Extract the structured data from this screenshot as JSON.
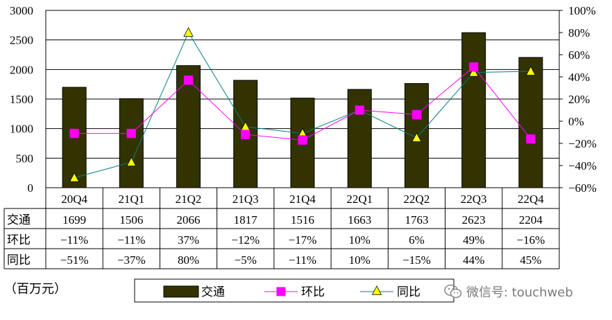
{
  "unit_label": "（百万元）",
  "watermark": "微信号: touchweb",
  "colors": {
    "bar": "#333300",
    "qoq_line": "#ff00ff",
    "yoy_line": "#008080",
    "yoy_marker": "#ffff00"
  },
  "chart_data": {
    "type": "bar",
    "title": "",
    "categories": [
      "20Q4",
      "21Q1",
      "21Q2",
      "21Q3",
      "21Q4",
      "22Q1",
      "22Q2",
      "22Q3",
      "22Q4"
    ],
    "series": [
      {
        "name": "交通",
        "type": "bar",
        "axis": "left",
        "values": [
          1699,
          1506,
          2066,
          1817,
          1516,
          1663,
          1763,
          2623,
          2204
        ]
      },
      {
        "name": "环比",
        "type": "line",
        "axis": "right",
        "marker": "square",
        "values": [
          -11,
          -11,
          37,
          -12,
          -17,
          10,
          6,
          49,
          -16
        ]
      },
      {
        "name": "同比",
        "type": "line",
        "axis": "right",
        "marker": "triangle",
        "values": [
          -51,
          -37,
          80,
          -5,
          -11,
          10,
          -15,
          44,
          45
        ]
      }
    ],
    "left_axis": {
      "min": 0,
      "max": 3000,
      "ticks": [
        "0",
        "500",
        "1000",
        "1500",
        "2000",
        "2500",
        "3000"
      ]
    },
    "right_axis": {
      "min": -60,
      "max": 100,
      "ticks": [
        "-60%",
        "-40%",
        "-20%",
        "0%",
        "20%",
        "40%",
        "60%",
        "80%",
        "100%"
      ]
    },
    "grid": true,
    "legend_position": "bottom",
    "table": {
      "rows": [
        {
          "label": "交通",
          "cells": [
            "1699",
            "1506",
            "2066",
            "1817",
            "1516",
            "1663",
            "1763",
            "2623",
            "2204"
          ]
        },
        {
          "label": "环比",
          "cells": [
            "-11%",
            "-11%",
            "37%",
            "-12%",
            "-17%",
            "10%",
            "6%",
            "49%",
            "-16%"
          ]
        },
        {
          "label": "同比",
          "cells": [
            "-51%",
            "-37%",
            "80%",
            "-5%",
            "-11%",
            "10%",
            "-15%",
            "44%",
            "45%"
          ]
        }
      ]
    }
  }
}
